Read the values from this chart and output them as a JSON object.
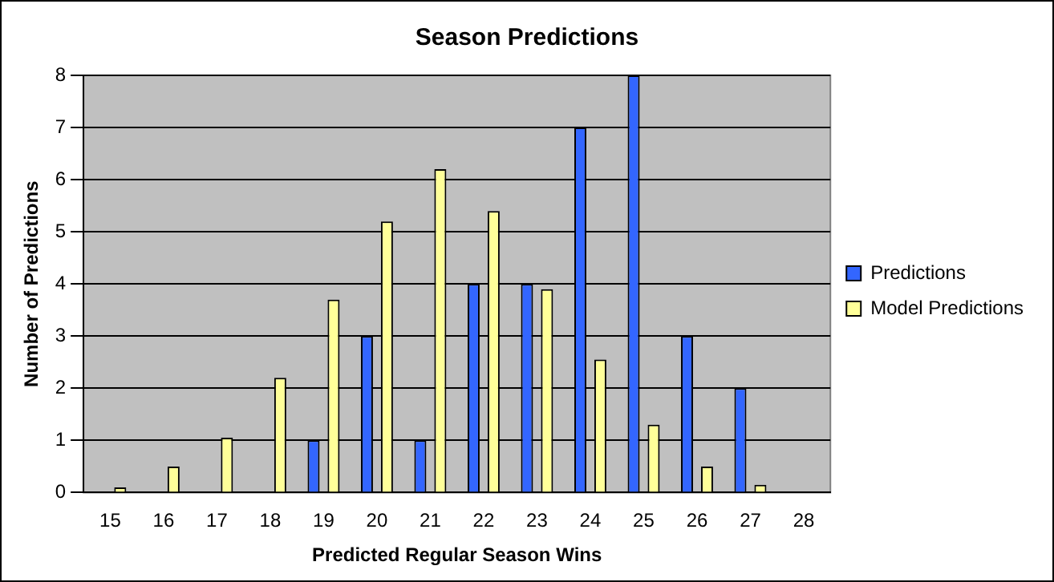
{
  "chart_data": {
    "type": "bar",
    "title": "Season Predictions",
    "xlabel": "Predicted Regular Season Wins",
    "ylabel": "Number of Predictions",
    "categories": [
      "15",
      "16",
      "17",
      "18",
      "19",
      "20",
      "21",
      "22",
      "23",
      "24",
      "25",
      "26",
      "27",
      "28"
    ],
    "series": [
      {
        "name": "Predictions",
        "color": "#3366ff",
        "values": [
          0,
          0,
          0,
          0,
          1,
          3,
          1,
          4,
          4,
          7,
          8,
          3,
          2,
          0
        ]
      },
      {
        "name": "Model Predictions",
        "color": "#ffff99",
        "values": [
          0.1,
          0.5,
          1.05,
          2.2,
          3.7,
          5.2,
          6.2,
          5.4,
          3.9,
          2.55,
          1.3,
          0.5,
          0.15,
          null
        ]
      }
    ],
    "ylim": [
      0,
      8
    ],
    "yticks": [
      0,
      1,
      2,
      3,
      4,
      5,
      6,
      7,
      8
    ],
    "grid": "y",
    "legend": "right"
  }
}
